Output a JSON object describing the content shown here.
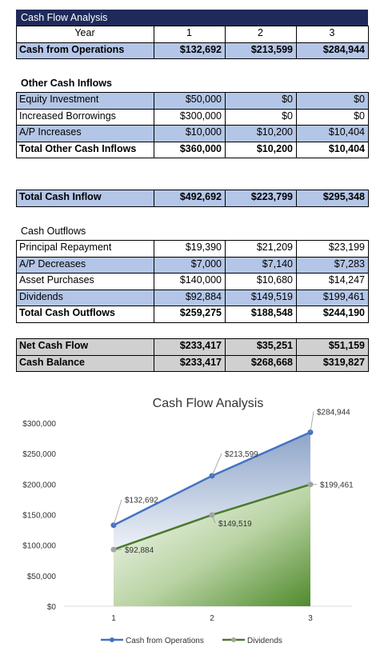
{
  "colors": {
    "title_bg": "#1f2a5a",
    "blue_row": "#b4c6e7",
    "gray_row": "#d0d0d0",
    "ops_line": "#4472c4",
    "div_line": "#4a7a2c"
  },
  "table": {
    "title": "Cash Flow Analysis",
    "header": {
      "label": "Year",
      "cols": [
        "1",
        "2",
        "3"
      ]
    },
    "cash_from_operations": {
      "label": "Cash from Operations",
      "values": [
        "$132,692",
        "$213,599",
        "$284,944"
      ]
    },
    "other_inflows_heading": "Other Cash Inflows",
    "other_inflows": [
      {
        "label": "Equity Investment",
        "values": [
          "$50,000",
          "$0",
          "$0"
        ]
      },
      {
        "label": "Increased Borrowings",
        "values": [
          "$300,000",
          "$0",
          "$0"
        ]
      },
      {
        "label": "A/P Increases",
        "values": [
          "$10,000",
          "$10,200",
          "$10,404"
        ]
      }
    ],
    "total_other_inflows": {
      "label": "Total Other Cash Inflows",
      "values": [
        "$360,000",
        "$10,200",
        "$10,404"
      ]
    },
    "total_cash_inflow": {
      "label": "Total Cash Inflow",
      "values": [
        "$492,692",
        "$223,799",
        "$295,348"
      ]
    },
    "outflows_heading": "Cash Outflows",
    "outflows": [
      {
        "label": "Principal Repayment",
        "values": [
          "$19,390",
          "$21,209",
          "$23,199"
        ]
      },
      {
        "label": "A/P Decreases",
        "values": [
          "$7,000",
          "$7,140",
          "$7,283"
        ]
      },
      {
        "label": "Asset Purchases",
        "values": [
          "$140,000",
          "$10,680",
          "$14,247"
        ]
      },
      {
        "label": "Dividends",
        "values": [
          "$92,884",
          "$149,519",
          "$199,461"
        ]
      }
    ],
    "total_outflows": {
      "label": "Total Cash Outflows",
      "values": [
        "$259,275",
        "$188,548",
        "$244,190"
      ]
    },
    "net_cash_flow": {
      "label": "Net Cash Flow",
      "values": [
        "$233,417",
        "$35,251",
        "$51,159"
      ]
    },
    "cash_balance": {
      "label": "Cash Balance",
      "values": [
        "$233,417",
        "$268,668",
        "$319,827"
      ]
    }
  },
  "chart_data": {
    "type": "area",
    "title": "Cash Flow Analysis",
    "categories": [
      "1",
      "2",
      "3"
    ],
    "ylim": [
      0,
      300000
    ],
    "yticks": [
      "$0",
      "$50,000",
      "$100,000",
      "$150,000",
      "$200,000",
      "$250,000",
      "$300,000"
    ],
    "series": [
      {
        "name": "Cash from Operations",
        "values": [
          132692,
          213599,
          284944
        ],
        "labels": [
          "$132,692",
          "$213,599",
          "$284,944"
        ]
      },
      {
        "name": "Dividends",
        "values": [
          92884,
          149519,
          199461
        ],
        "labels": [
          "$92,884",
          "$149,519",
          "$199,461"
        ]
      }
    ],
    "legend": "bottom",
    "grid": false
  }
}
